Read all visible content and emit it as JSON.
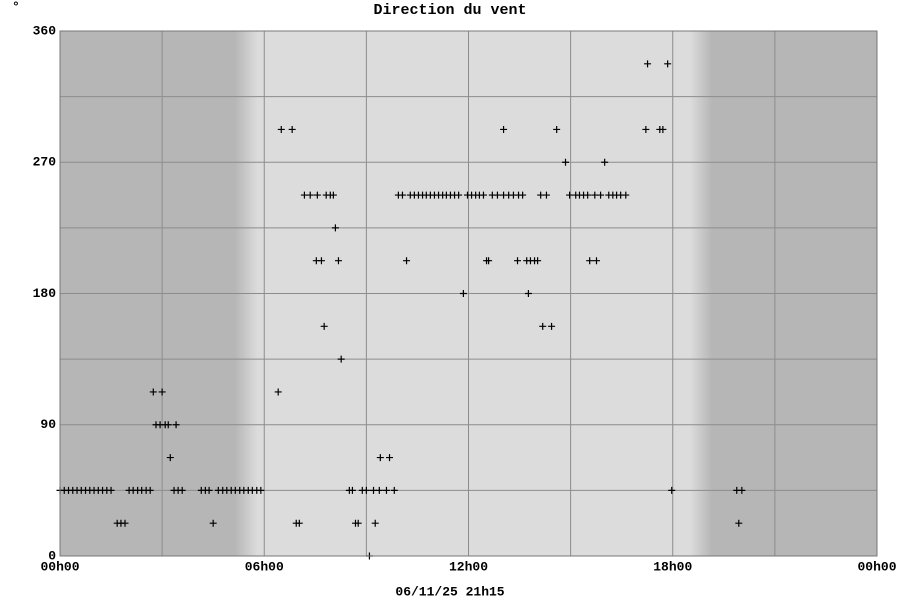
{
  "chart_data": {
    "type": "scatter",
    "corner_mark": "°",
    "title": "Direction du vent",
    "xlabel": "06/11/25 21h15",
    "color": "#000000",
    "grid": true,
    "xlim": [
      0,
      24
    ],
    "xticks": [
      {
        "value": 0,
        "label": "00h00"
      },
      {
        "value": 6,
        "label": "06h00"
      },
      {
        "value": 12,
        "label": "12h00"
      },
      {
        "value": 18,
        "label": "18h00"
      },
      {
        "value": 24,
        "label": "00h00"
      }
    ],
    "xminor": [
      3,
      9,
      15,
      21
    ],
    "ylim": [
      0,
      360
    ],
    "yticks": [
      0,
      90,
      180,
      270,
      360
    ],
    "yminor": [
      45,
      135,
      225,
      315
    ],
    "x": [
      0,
      0.125,
      0.25,
      0.375,
      0.5,
      0.625,
      0.75,
      0.875,
      1,
      1.125,
      1.25,
      1.375,
      1.5,
      1.68,
      1.79,
      1.91,
      2.03,
      2.15,
      2.28,
      2.4,
      2.53,
      2.65,
      2.74,
      2.82,
      2.94,
      3.0,
      3.09,
      3.18,
      3.24,
      3.35,
      3.41,
      3.47,
      3.59,
      4.15,
      4.27,
      4.38,
      4.5,
      4.65,
      4.78,
      4.9,
      5.03,
      5.15,
      5.28,
      5.4,
      5.53,
      5.65,
      5.78,
      5.9,
      6.41,
      6.5,
      6.82,
      6.94,
      7.03,
      7.18,
      7.35,
      7.53,
      7.56,
      7.68,
      7.76,
      7.82,
      7.94,
      8.03,
      8.09,
      8.18,
      8.26,
      8.5,
      8.59,
      8.68,
      8.76,
      8.88,
      9.0,
      9.09,
      9.21,
      9.26,
      9.38,
      9.41,
      9.59,
      9.68,
      9.82,
      9.94,
      10.06,
      10.29,
      10.41,
      10.53,
      10.65,
      10.76,
      10.88,
      11.0,
      11.12,
      11.24,
      11.35,
      11.47,
      11.59,
      11.71,
      11.97,
      12.09,
      12.21,
      12.32,
      12.44,
      10.18,
      11.85,
      12.53,
      12.59,
      12.7,
      12.85,
      13.03,
      13.03,
      13.18,
      13.32,
      13.47,
      13.59,
      13.44,
      13.71,
      13.82,
      13.94,
      14.03,
      13.76,
      14.12,
      14.29,
      14.18,
      14.44,
      14.59,
      14.85,
      14.97,
      15.15,
      15.26,
      15.38,
      15.5,
      15.56,
      15.76,
      15.71,
      15.88,
      16.12,
      16.24,
      16.35,
      16.47,
      16.62,
      16.0,
      17.21,
      17.26,
      17.62,
      17.71,
      17.85,
      17.97,
      19.88,
      19.94,
      20.03
    ],
    "values": [
      45,
      45,
      45,
      45,
      45,
      45,
      45,
      45,
      45,
      45,
      45,
      45,
      45,
      22.5,
      22.5,
      22.5,
      45,
      45,
      45,
      45,
      45,
      45,
      112.5,
      90,
      90,
      112.5,
      90,
      90,
      67.5,
      45,
      90,
      45,
      45,
      45,
      45,
      45,
      22.5,
      45,
      45,
      45,
      45,
      45,
      45,
      45,
      45,
      45,
      45,
      45,
      112.5,
      292.5,
      292.5,
      22.5,
      22.5,
      247.5,
      247.5,
      202.5,
      247.5,
      202.5,
      157.5,
      247.5,
      247.5,
      247.5,
      225,
      202.5,
      135,
      45,
      45,
      22.5,
      22.5,
      45,
      45,
      0,
      45,
      22.5,
      45,
      67.5,
      45,
      67.5,
      45,
      247.5,
      247.5,
      247.5,
      247.5,
      247.5,
      247.5,
      247.5,
      247.5,
      247.5,
      247.5,
      247.5,
      247.5,
      247.5,
      247.5,
      247.5,
      247.5,
      247.5,
      247.5,
      247.5,
      247.5,
      202.5,
      180,
      202.5,
      202.5,
      247.5,
      247.5,
      292.5,
      247.5,
      247.5,
      247.5,
      247.5,
      247.5,
      202.5,
      202.5,
      202.5,
      202.5,
      202.5,
      180,
      247.5,
      247.5,
      157.5,
      157.5,
      292.5,
      270,
      247.5,
      247.5,
      247.5,
      247.5,
      247.5,
      202.5,
      202.5,
      247.5,
      247.5,
      247.5,
      247.5,
      247.5,
      247.5,
      247.5,
      270,
      292.5,
      337.5,
      292.5,
      292.5,
      337.5,
      45,
      45,
      22.5,
      45
    ]
  }
}
